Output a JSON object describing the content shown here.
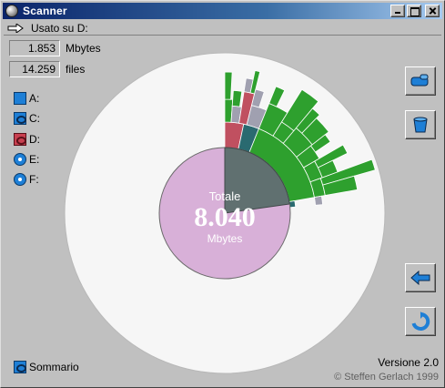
{
  "window": {
    "title": "Scanner"
  },
  "path": {
    "label": "Usato su D:"
  },
  "stats": [
    {
      "value": "1.853",
      "unit": "Mbytes"
    },
    {
      "value": "14.259",
      "unit": "files"
    }
  ],
  "drives": [
    {
      "label": "A:",
      "icon": "floppy-drive-icon"
    },
    {
      "label": "C:",
      "icon": "hard-drive-icon"
    },
    {
      "label": "D:",
      "icon": "hard-drive-icon-selected"
    },
    {
      "label": "E:",
      "icon": "cd-drive-icon"
    },
    {
      "label": "F:",
      "icon": "cd-drive-icon"
    }
  ],
  "center": {
    "title": "Totale",
    "value": "8.040",
    "unit": "Mbytes"
  },
  "summary": {
    "label": "Sommario"
  },
  "footer": {
    "version": "Versione 2.0",
    "copyright": "© Steffen Gerlach 1999"
  },
  "colors": {
    "background_disc": "#f6f6f6",
    "used_total": "#d8b0d8",
    "used_drive": "#607070",
    "folder_red": "#c05060",
    "folder_green": "#2ea02e",
    "folder_teal": "#2a6a70",
    "folder_gray": "#a0a0b0"
  }
}
